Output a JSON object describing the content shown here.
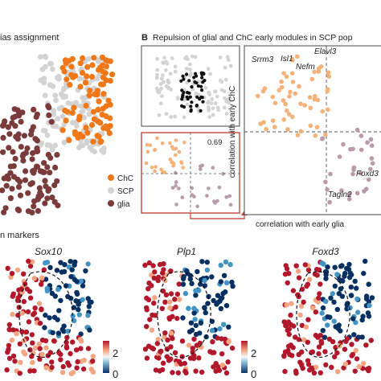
{
  "panel_a": {
    "title": "ias assignment",
    "legend": [
      {
        "label": "ChC",
        "color": "#f07818"
      },
      {
        "label": "SCP",
        "color": "#d3d3d3"
      },
      {
        "label": "glia",
        "color": "#7a3b3b"
      }
    ]
  },
  "panel_b": {
    "letter": "B",
    "title": "Repulsion of glial and ChC early modules in SCP pop",
    "inset_value": "0.69",
    "xlabel": "correlation with early glia",
    "ylabel": "correlation with early ChC",
    "genes": [
      "Srrm3",
      "Isl1",
      "Elavl3",
      "Nefm",
      "Foxd3",
      "Tagln2"
    ]
  },
  "panel_c": {
    "title": "n markers",
    "genes": [
      "Sox10",
      "Plp1",
      "Foxd3"
    ],
    "scale_max": "2",
    "scale_min": "0"
  },
  "colors": {
    "chc": "#f07818",
    "scp": "#d3d3d3",
    "glia": "#7a3b3b",
    "high": "#b2182b",
    "low": "#053061",
    "light_orange": "#f4b27a",
    "frame_red": "#c0392b"
  }
}
